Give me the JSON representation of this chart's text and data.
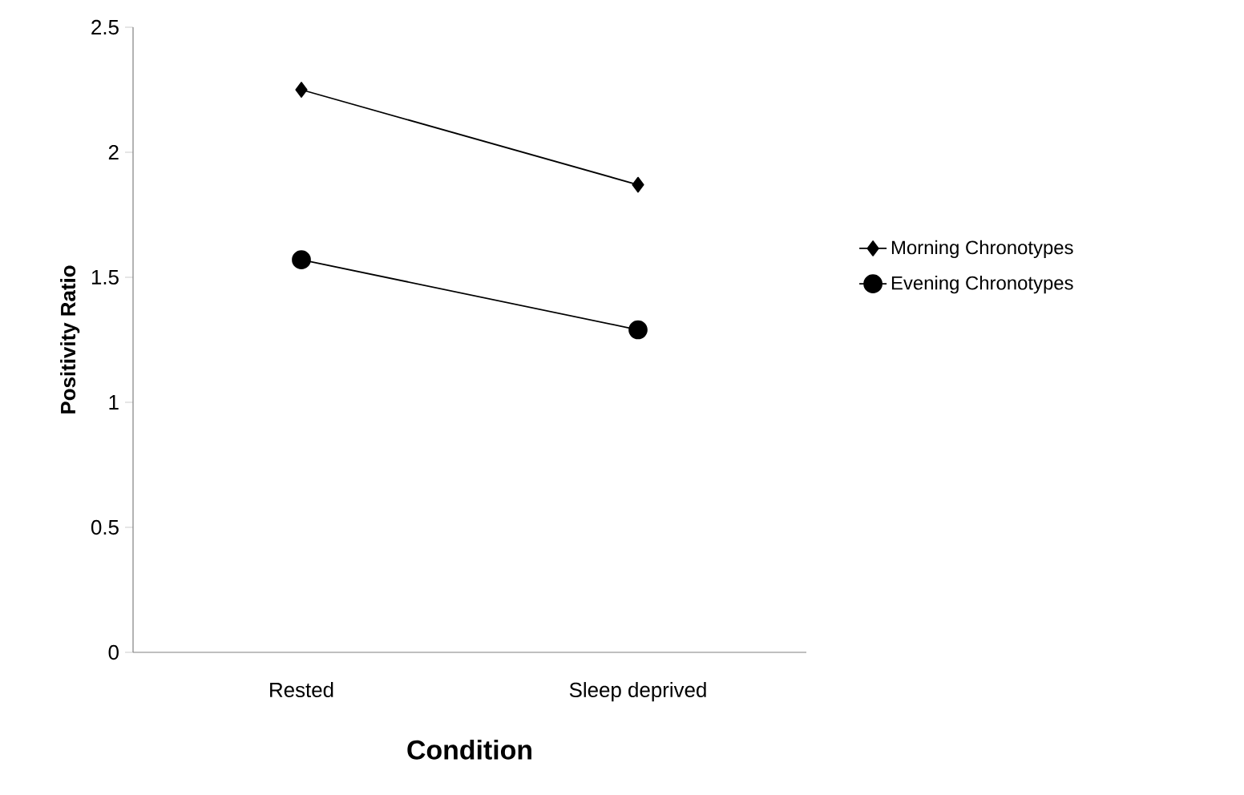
{
  "chart_data": {
    "type": "line",
    "xlabel": "Condition",
    "ylabel": "Positivity Ratio",
    "categories": [
      "Rested",
      "Sleep  deprived"
    ],
    "series": [
      {
        "name": "Morning Chronotypes",
        "color": "#000000",
        "marker": "diamond",
        "values": [
          2.25,
          1.87
        ]
      },
      {
        "name": "Evening Chronotypes",
        "color": "#000000",
        "marker": "circle",
        "values": [
          1.57,
          1.29
        ]
      }
    ],
    "ylim": [
      0,
      2.5
    ],
    "yticks": [
      0,
      0.5,
      1,
      1.5,
      2,
      2.5
    ],
    "grid": false,
    "legend": "right",
    "line_style": "solid"
  }
}
